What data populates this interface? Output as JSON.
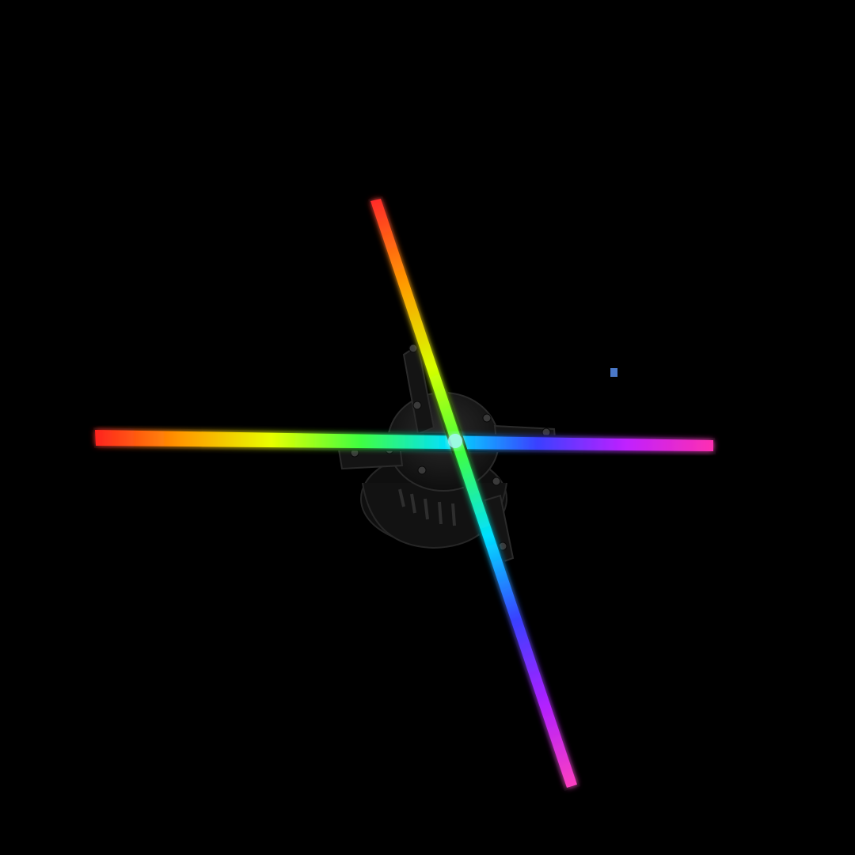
{
  "scene": {
    "background": "#000000",
    "subject": "holographic-fan-icon",
    "housing_color": "#141414",
    "housing_edge_color": "#2a2a2a",
    "bolt_color": "#3a3a3a",
    "stray_pixel_color": "#4a78c8",
    "horizontal_blade_gradient": [
      "#ff2020",
      "#ff9a00",
      "#e8ff00",
      "#40ff40",
      "#00e0ff",
      "#3a40ff",
      "#c020ff",
      "#ff30b0"
    ],
    "diagonal_blade_gradient": [
      "#ff2a2a",
      "#ff9a00",
      "#d8ff00",
      "#40ff40",
      "#00e0ff",
      "#3a40ff",
      "#b020ff",
      "#ff40c0"
    ]
  }
}
